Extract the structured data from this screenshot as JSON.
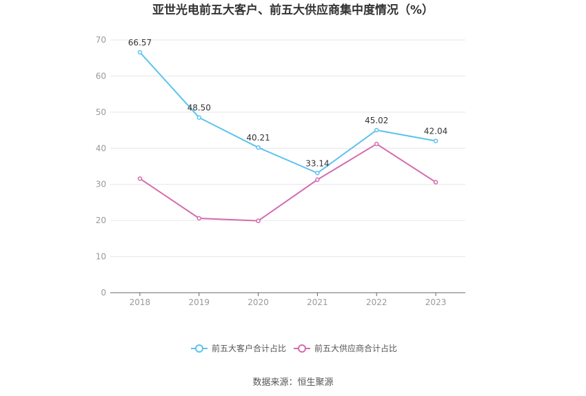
{
  "chart_data": {
    "type": "line",
    "title": "亚世光电前五大客户、前五大供应商集中度情况（%）",
    "categories": [
      "2018",
      "2019",
      "2020",
      "2021",
      "2022",
      "2023"
    ],
    "ylim": [
      0,
      70
    ],
    "yticks": [
      0,
      10,
      20,
      30,
      40,
      50,
      60,
      70
    ],
    "grid": true,
    "legend_position": "bottom",
    "series": [
      {
        "name": "前五大客户合计占比",
        "color": "#5bc2f0",
        "values": [
          66.57,
          48.5,
          40.21,
          33.14,
          45.02,
          42.04
        ],
        "labels": [
          "66.57",
          "48.50",
          "40.21",
          "33.14",
          "45.02",
          "42.04"
        ]
      },
      {
        "name": "前五大供应商合计占比",
        "color": "#d46aaf",
        "values": [
          31.6,
          20.6,
          19.9,
          31.3,
          41.2,
          30.6
        ],
        "labels": []
      }
    ]
  },
  "source": "数据来源：恒生聚源"
}
